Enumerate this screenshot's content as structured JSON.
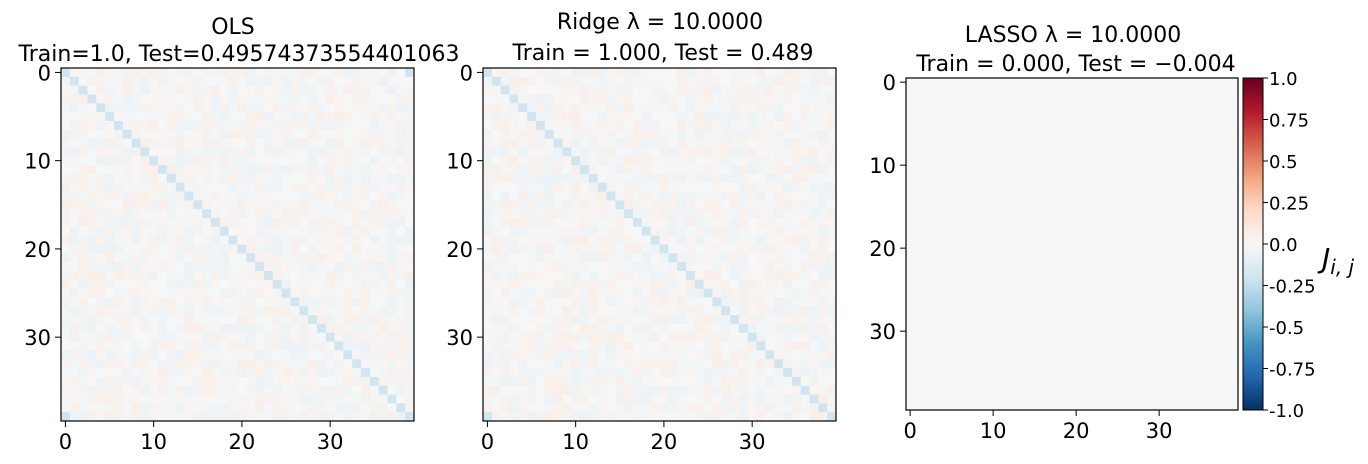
{
  "chart_data": [
    {
      "type": "heatmap",
      "title_line1": "OLS",
      "title_line2": "Train=1.0, Test=0.49574373554401063",
      "size": 40,
      "xticks": [
        0,
        10,
        20,
        30
      ],
      "yticks": [
        0,
        10,
        20,
        30
      ],
      "diagonal_value": -0.2,
      "corner_values": {
        "top_right": -0.2,
        "bottom_left": -0.2
      },
      "off_diagonal_noise_amplitude": 0.06
    },
    {
      "type": "heatmap",
      "title_line1": "Ridge λ = 10.0000",
      "title_line2": "Train = 1.000, Test = 0.489",
      "size": 40,
      "xticks": [
        0,
        10,
        20,
        30
      ],
      "yticks": [
        0,
        10,
        20,
        30
      ],
      "diagonal_value": -0.2,
      "corner_values": {
        "bottom_left": -0.2
      },
      "off_diagonal_noise_amplitude": 0.06
    },
    {
      "type": "heatmap",
      "title_line1": "LASSO λ = 10.0000",
      "title_line2": "Train = 0.000, Test = −0.004",
      "size": 40,
      "xticks": [
        0,
        10,
        20,
        30
      ],
      "yticks": [
        0,
        10,
        20,
        30
      ],
      "diagonal_value": 0,
      "off_diagonal_noise_amplitude": 0
    }
  ],
  "colorbar": {
    "label": "J",
    "label_sub": "i, j",
    "ticks": [
      "1.0",
      "0.75",
      "0.5",
      "0.25",
      "0.0",
      "-0.25",
      "-0.5",
      "-0.75",
      "-1.0"
    ],
    "range": [
      -1.0,
      1.0
    ],
    "colormap_stops": [
      "#053061",
      "#2166ac",
      "#4393c3",
      "#92c5de",
      "#d1e5f0",
      "#f7f7f7",
      "#fddbc7",
      "#f4a582",
      "#d6604d",
      "#b2182b",
      "#67001f"
    ]
  }
}
